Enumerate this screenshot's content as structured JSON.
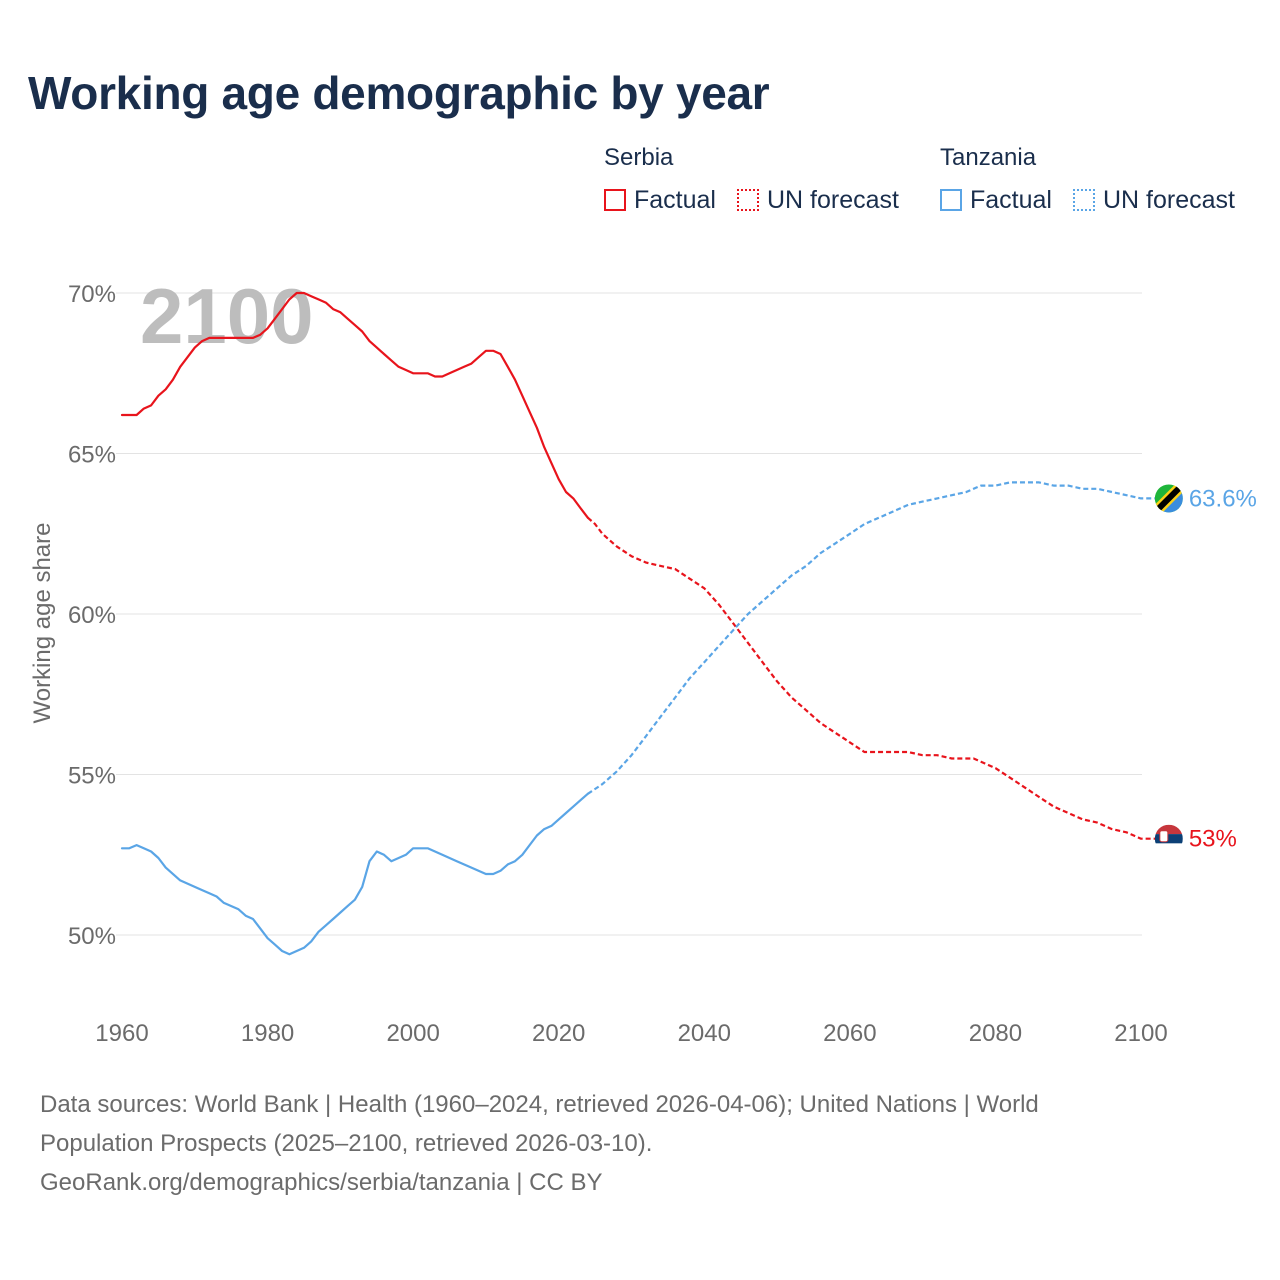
{
  "title": "Working age demographic by year",
  "legend": {
    "groups": [
      {
        "name": "Serbia",
        "color": "#e8141c",
        "factual_label": "Factual",
        "forecast_label": "UN forecast"
      },
      {
        "name": "Tanzania",
        "color": "#5aa5e6",
        "factual_label": "Factual",
        "forecast_label": "UN forecast"
      }
    ]
  },
  "sources": {
    "line1": "Data sources: World Bank | Health (1960–2024, retrieved 2026-04-06); United Nations | World",
    "line2": "Population Prospects (2025–2100, retrieved 2026-03-10).",
    "line3": "GeoRank.org/demographics/serbia/tanzania | CC BY"
  },
  "chart_data": {
    "type": "line",
    "title": "Working age demographic by year",
    "year_watermark": "2100",
    "ylabel": "Working age share",
    "xlabel": "",
    "xlim": [
      1960,
      2100
    ],
    "ylim": [
      47.5,
      70
    ],
    "x_ticks": [
      1960,
      1980,
      2000,
      2020,
      2040,
      2060,
      2080,
      2100
    ],
    "y_ticks": [
      50,
      55,
      60,
      65,
      70
    ],
    "y_tick_labels": [
      "50%",
      "55%",
      "60%",
      "65%",
      "70%"
    ],
    "grid": true,
    "forecast_start": 2024,
    "series": [
      {
        "name": "Serbia",
        "color": "#e8141c",
        "end_label": "53%",
        "end_icon": "serbia-flag-icon",
        "points": [
          [
            1960,
            66.2
          ],
          [
            1962,
            66.2
          ],
          [
            1963,
            66.4
          ],
          [
            1964,
            66.5
          ],
          [
            1965,
            66.8
          ],
          [
            1966,
            67.0
          ],
          [
            1967,
            67.3
          ],
          [
            1968,
            67.7
          ],
          [
            1969,
            68.0
          ],
          [
            1970,
            68.3
          ],
          [
            1971,
            68.5
          ],
          [
            1972,
            68.6
          ],
          [
            1975,
            68.6
          ],
          [
            1978,
            68.6
          ],
          [
            1979,
            68.7
          ],
          [
            1980,
            68.9
          ],
          [
            1981,
            69.2
          ],
          [
            1982,
            69.5
          ],
          [
            1983,
            69.8
          ],
          [
            1984,
            70.0
          ],
          [
            1985,
            70.0
          ],
          [
            1986,
            69.9
          ],
          [
            1987,
            69.8
          ],
          [
            1988,
            69.7
          ],
          [
            1989,
            69.5
          ],
          [
            1990,
            69.4
          ],
          [
            1991,
            69.2
          ],
          [
            1992,
            69.0
          ],
          [
            1993,
            68.8
          ],
          [
            1994,
            68.5
          ],
          [
            1995,
            68.3
          ],
          [
            1996,
            68.1
          ],
          [
            1997,
            67.9
          ],
          [
            1998,
            67.7
          ],
          [
            1999,
            67.6
          ],
          [
            2000,
            67.5
          ],
          [
            2002,
            67.5
          ],
          [
            2003,
            67.4
          ],
          [
            2004,
            67.4
          ],
          [
            2005,
            67.5
          ],
          [
            2006,
            67.6
          ],
          [
            2007,
            67.7
          ],
          [
            2008,
            67.8
          ],
          [
            2009,
            68.0
          ],
          [
            2010,
            68.2
          ],
          [
            2011,
            68.2
          ],
          [
            2012,
            68.1
          ],
          [
            2013,
            67.7
          ],
          [
            2014,
            67.3
          ],
          [
            2015,
            66.8
          ],
          [
            2016,
            66.3
          ],
          [
            2017,
            65.8
          ],
          [
            2018,
            65.2
          ],
          [
            2019,
            64.7
          ],
          [
            2020,
            64.2
          ],
          [
            2021,
            63.8
          ],
          [
            2022,
            63.6
          ],
          [
            2023,
            63.3
          ],
          [
            2024,
            63.0
          ],
          [
            2025,
            62.8
          ],
          [
            2026,
            62.5
          ],
          [
            2028,
            62.1
          ],
          [
            2030,
            61.8
          ],
          [
            2032,
            61.6
          ],
          [
            2034,
            61.5
          ],
          [
            2036,
            61.4
          ],
          [
            2038,
            61.1
          ],
          [
            2040,
            60.8
          ],
          [
            2042,
            60.3
          ],
          [
            2044,
            59.7
          ],
          [
            2046,
            59.1
          ],
          [
            2048,
            58.5
          ],
          [
            2050,
            57.9
          ],
          [
            2052,
            57.4
          ],
          [
            2054,
            57.0
          ],
          [
            2056,
            56.6
          ],
          [
            2058,
            56.3
          ],
          [
            2060,
            56.0
          ],
          [
            2062,
            55.7
          ],
          [
            2065,
            55.7
          ],
          [
            2068,
            55.7
          ],
          [
            2070,
            55.6
          ],
          [
            2072,
            55.6
          ],
          [
            2074,
            55.5
          ],
          [
            2077,
            55.5
          ],
          [
            2080,
            55.2
          ],
          [
            2082,
            54.9
          ],
          [
            2084,
            54.6
          ],
          [
            2086,
            54.3
          ],
          [
            2088,
            54.0
          ],
          [
            2090,
            53.8
          ],
          [
            2092,
            53.6
          ],
          [
            2094,
            53.5
          ],
          [
            2096,
            53.3
          ],
          [
            2098,
            53.2
          ],
          [
            2100,
            53.0
          ],
          [
            2103,
            53.0
          ]
        ]
      },
      {
        "name": "Tanzania",
        "color": "#5aa5e6",
        "end_label": "63.6%",
        "end_icon": "tanzania-flag-icon",
        "points": [
          [
            1960,
            52.7
          ],
          [
            1961,
            52.7
          ],
          [
            1962,
            52.8
          ],
          [
            1963,
            52.7
          ],
          [
            1964,
            52.6
          ],
          [
            1965,
            52.4
          ],
          [
            1966,
            52.1
          ],
          [
            1968,
            51.7
          ],
          [
            1970,
            51.5
          ],
          [
            1972,
            51.3
          ],
          [
            1973,
            51.2
          ],
          [
            1974,
            51.0
          ],
          [
            1976,
            50.8
          ],
          [
            1977,
            50.6
          ],
          [
            1978,
            50.5
          ],
          [
            1979,
            50.2
          ],
          [
            1980,
            49.9
          ],
          [
            1981,
            49.7
          ],
          [
            1982,
            49.5
          ],
          [
            1983,
            49.4
          ],
          [
            1984,
            49.5
          ],
          [
            1985,
            49.6
          ],
          [
            1986,
            49.8
          ],
          [
            1987,
            50.1
          ],
          [
            1988,
            50.3
          ],
          [
            1989,
            50.5
          ],
          [
            1990,
            50.7
          ],
          [
            1991,
            50.9
          ],
          [
            1992,
            51.1
          ],
          [
            1993,
            51.5
          ],
          [
            1994,
            52.3
          ],
          [
            1995,
            52.6
          ],
          [
            1996,
            52.5
          ],
          [
            1997,
            52.3
          ],
          [
            1998,
            52.4
          ],
          [
            1999,
            52.5
          ],
          [
            2000,
            52.7
          ],
          [
            2002,
            52.7
          ],
          [
            2004,
            52.5
          ],
          [
            2006,
            52.3
          ],
          [
            2008,
            52.1
          ],
          [
            2010,
            51.9
          ],
          [
            2011,
            51.9
          ],
          [
            2012,
            52.0
          ],
          [
            2013,
            52.2
          ],
          [
            2014,
            52.3
          ],
          [
            2015,
            52.5
          ],
          [
            2016,
            52.8
          ],
          [
            2017,
            53.1
          ],
          [
            2018,
            53.3
          ],
          [
            2019,
            53.4
          ],
          [
            2020,
            53.6
          ],
          [
            2021,
            53.8
          ],
          [
            2022,
            54.0
          ],
          [
            2023,
            54.2
          ],
          [
            2024,
            54.4
          ],
          [
            2026,
            54.7
          ],
          [
            2028,
            55.1
          ],
          [
            2030,
            55.6
          ],
          [
            2032,
            56.2
          ],
          [
            2034,
            56.8
          ],
          [
            2036,
            57.4
          ],
          [
            2038,
            58.0
          ],
          [
            2040,
            58.5
          ],
          [
            2042,
            59.0
          ],
          [
            2044,
            59.5
          ],
          [
            2046,
            60.0
          ],
          [
            2048,
            60.4
          ],
          [
            2050,
            60.8
          ],
          [
            2052,
            61.2
          ],
          [
            2054,
            61.5
          ],
          [
            2056,
            61.9
          ],
          [
            2058,
            62.2
          ],
          [
            2060,
            62.5
          ],
          [
            2062,
            62.8
          ],
          [
            2064,
            63.0
          ],
          [
            2066,
            63.2
          ],
          [
            2068,
            63.4
          ],
          [
            2070,
            63.5
          ],
          [
            2072,
            63.6
          ],
          [
            2074,
            63.7
          ],
          [
            2076,
            63.8
          ],
          [
            2078,
            64.0
          ],
          [
            2080,
            64.0
          ],
          [
            2082,
            64.1
          ],
          [
            2086,
            64.1
          ],
          [
            2088,
            64.0
          ],
          [
            2090,
            64.0
          ],
          [
            2092,
            63.9
          ],
          [
            2094,
            63.9
          ],
          [
            2096,
            63.8
          ],
          [
            2098,
            63.7
          ],
          [
            2100,
            63.6
          ],
          [
            2103,
            63.6
          ]
        ]
      }
    ]
  }
}
